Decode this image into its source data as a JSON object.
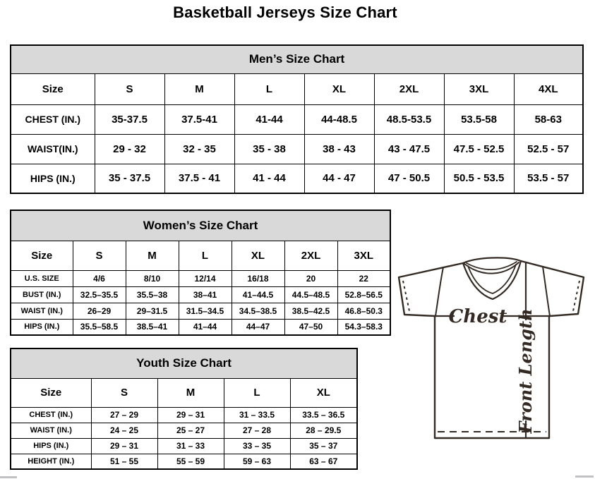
{
  "page_title": "Basketball Jerseys Size Chart",
  "tables": {
    "men": {
      "title": "Men’s Size Chart",
      "columns": [
        "Size",
        "S",
        "M",
        "L",
        "XL",
        "2XL",
        "3XL",
        "4XL"
      ],
      "rows": [
        {
          "label": "CHEST (IN.)",
          "values": [
            "35-37.5",
            "37.5-41",
            "41-44",
            "44-48.5",
            "48.5-53.5",
            "53.5-58",
            "58-63"
          ]
        },
        {
          "label": "WAIST(IN.)",
          "values": [
            "29 - 32",
            "32 - 35",
            "35 - 38",
            "38 - 43",
            "43 - 47.5",
            "47.5 - 52.5",
            "52.5 - 57"
          ]
        },
        {
          "label": "HIPS (IN.)",
          "values": [
            "35 - 37.5",
            "37.5 - 41",
            "41 - 44",
            "44 - 47",
            "47 - 50.5",
            "50.5 - 53.5",
            "53.5 - 57"
          ]
        }
      ]
    },
    "women": {
      "title": "Women’s Size Chart",
      "columns": [
        "Size",
        "S",
        "M",
        "L",
        "XL",
        "2XL",
        "3XL"
      ],
      "rows": [
        {
          "label": "U.S. SIZE",
          "values": [
            "4/6",
            "8/10",
            "12/14",
            "16/18",
            "20",
            "22"
          ]
        },
        {
          "label": "BUST (IN.)",
          "values": [
            "32.5–35.5",
            "35.5–38",
            "38–41",
            "41–44.5",
            "44.5–48.5",
            "52.8–56.5"
          ]
        },
        {
          "label": "WAIST (IN.)",
          "values": [
            "26–29",
            "29–31.5",
            "31.5–34.5",
            "34.5–38.5",
            "38.5–42.5",
            "46.8–50.3"
          ]
        },
        {
          "label": "HIPS (IN.)",
          "values": [
            "35.5–58.5",
            "38.5–41",
            "41–44",
            "44–47",
            "47–50",
            "54.3–58.3"
          ]
        }
      ]
    },
    "youth": {
      "title": "Youth Size Chart",
      "columns": [
        "Size",
        "S",
        "M",
        "L",
        "XL"
      ],
      "rows": [
        {
          "label": "CHEST (IN.)",
          "values": [
            "27 – 29",
            "29 – 31",
            "31 – 33.5",
            "33.5 – 36.5"
          ]
        },
        {
          "label": "WAIST (IN.)",
          "values": [
            "24 – 25",
            "25 – 27",
            "27 – 28",
            "28 – 29.5"
          ]
        },
        {
          "label": "HIPS (IN.)",
          "values": [
            "29 – 31",
            "31 – 33",
            "33 – 35",
            "35 – 37"
          ]
        },
        {
          "label": "HEIGHT (IN.)",
          "values": [
            "51 – 55",
            "55 – 59",
            "59 – 63",
            "63 – 67"
          ]
        }
      ]
    }
  },
  "diagram": {
    "chest_label": "Chest",
    "front_length_label": "Front Length"
  },
  "colors": {
    "table_band_gray": "#d9d9d9",
    "line_color": "#342a24"
  }
}
